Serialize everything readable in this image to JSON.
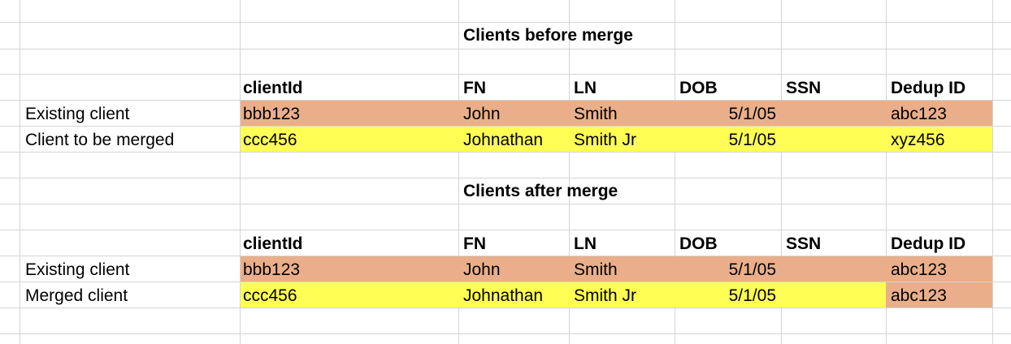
{
  "colors": {
    "existing_row_fill": "#eaaf8a",
    "merged_row_fill": "#fefe54",
    "gridline": "#d4d4d4"
  },
  "before": {
    "title": "Clients before merge",
    "headers": [
      "clientId",
      "FN",
      "LN",
      "DOB",
      "SSN",
      "Dedup ID"
    ],
    "rows": [
      {
        "label": "Existing client",
        "cells": [
          "bbb123",
          "John",
          "Smith",
          "5/1/05",
          "",
          "abc123"
        ],
        "fill": "existing"
      },
      {
        "label": "Client to be merged",
        "cells": [
          "ccc456",
          "Johnathan",
          "Smith Jr",
          "5/1/05",
          "",
          "xyz456"
        ],
        "fill": "merged"
      }
    ]
  },
  "after": {
    "title": "Clients after merge",
    "headers": [
      "clientId",
      "FN",
      "LN",
      "DOB",
      "SSN",
      "Dedup ID"
    ],
    "rows": [
      {
        "label": "Existing client",
        "cells": [
          "bbb123",
          "John",
          "Smith",
          "5/1/05",
          "",
          "abc123"
        ],
        "fill": "existing"
      },
      {
        "label": "Merged client",
        "cells": [
          "ccc456",
          "Johnathan",
          "Smith Jr",
          "5/1/05",
          "",
          "abc123"
        ],
        "fill": "merged",
        "dedup_fill": "existing"
      }
    ]
  }
}
